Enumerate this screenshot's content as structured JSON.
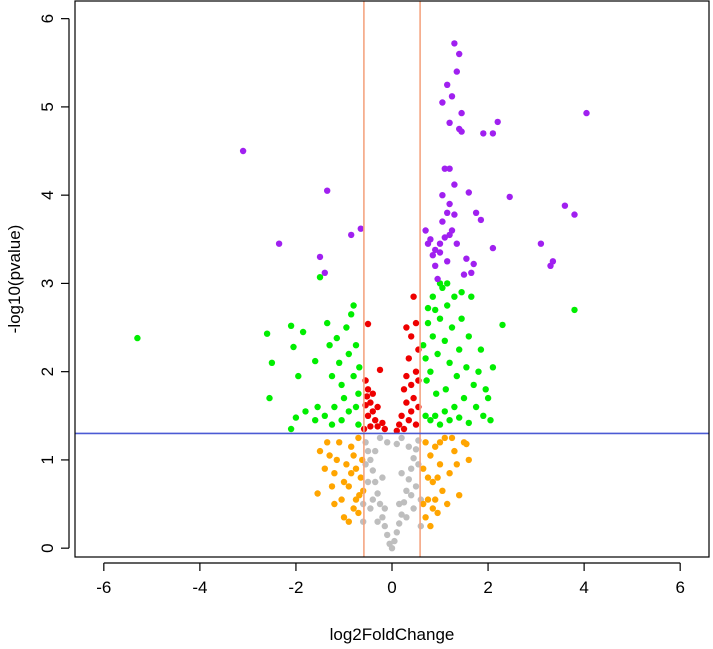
{
  "chart_data": {
    "type": "scatter",
    "title": "",
    "xlabel": "log2FoldChange",
    "ylabel": "-log10(pvalue)",
    "xlim": [
      -6.6,
      6.6
    ],
    "ylim": [
      -0.1,
      6.2
    ],
    "x_ticks": [
      -6,
      -4,
      -2,
      0,
      2,
      4,
      6
    ],
    "y_ticks": [
      0,
      1,
      2,
      3,
      4,
      5,
      6
    ],
    "thresholds": {
      "fold_change_lines": [
        -0.585,
        0.585
      ],
      "pvalue_line": 1.3,
      "fold_line_color": "#f4a582",
      "pvalue_line_color": "#4b5bd4"
    },
    "grid": false,
    "legend": "none",
    "series": [
      {
        "color": "#a020f0",
        "points": [
          [
            1.3,
            5.72
          ],
          [
            1.4,
            5.6
          ],
          [
            1.15,
            5.25
          ],
          [
            1.35,
            5.4
          ],
          [
            1.25,
            5.12
          ],
          [
            1.05,
            5.05
          ],
          [
            1.45,
            4.93
          ],
          [
            1.4,
            4.75
          ],
          [
            1.2,
            4.82
          ],
          [
            1.9,
            4.7
          ],
          [
            2.2,
            4.83
          ],
          [
            2.1,
            4.7
          ],
          [
            4.05,
            4.93
          ],
          [
            1.45,
            4.72
          ],
          [
            1.1,
            4.3
          ],
          [
            1.2,
            4.3
          ],
          [
            1.3,
            4.12
          ],
          [
            1.6,
            4.03
          ],
          [
            1.05,
            4.0
          ],
          [
            1.2,
            3.9
          ],
          [
            1.15,
            3.8
          ],
          [
            1.3,
            3.78
          ],
          [
            1.75,
            3.8
          ],
          [
            1.85,
            3.72
          ],
          [
            1.05,
            3.7
          ],
          [
            1.25,
            3.6
          ],
          [
            1.1,
            3.52
          ],
          [
            1.0,
            3.45
          ],
          [
            0.75,
            3.45
          ],
          [
            0.85,
            3.32
          ],
          [
            1.0,
            3.35
          ],
          [
            1.15,
            3.25
          ],
          [
            0.9,
            3.2
          ],
          [
            1.55,
            3.28
          ],
          [
            1.7,
            3.22
          ],
          [
            2.1,
            3.4
          ],
          [
            1.65,
            3.12
          ],
          [
            0.95,
            3.05
          ],
          [
            0.7,
            3.6
          ],
          [
            0.8,
            3.5
          ],
          [
            2.45,
            3.98
          ],
          [
            3.6,
            3.88
          ],
          [
            3.8,
            3.78
          ],
          [
            3.1,
            3.45
          ],
          [
            3.35,
            3.25
          ],
          [
            3.3,
            3.2
          ],
          [
            1.5,
            3.1
          ],
          [
            1.2,
            3.55
          ],
          [
            0.9,
            3.38
          ],
          [
            1.35,
            3.45
          ],
          [
            -3.1,
            4.5
          ],
          [
            -1.35,
            4.05
          ],
          [
            -2.35,
            3.45
          ],
          [
            -0.85,
            3.55
          ],
          [
            -1.5,
            3.3
          ],
          [
            -1.4,
            3.12
          ],
          [
            -0.65,
            3.62
          ]
        ]
      },
      {
        "color": "#00ee00",
        "points": [
          [
            -5.3,
            2.38
          ],
          [
            -2.6,
            2.43
          ],
          [
            -2.1,
            2.52
          ],
          [
            -2.5,
            2.1
          ],
          [
            -2.55,
            1.7
          ],
          [
            -2.05,
            2.28
          ],
          [
            -1.95,
            1.95
          ],
          [
            -1.85,
            2.45
          ],
          [
            -1.6,
            2.12
          ],
          [
            -1.55,
            1.6
          ],
          [
            -1.35,
            2.55
          ],
          [
            -1.3,
            2.3
          ],
          [
            -1.25,
            1.95
          ],
          [
            -1.15,
            2.38
          ],
          [
            -1.1,
            2.1
          ],
          [
            -1.05,
            1.85
          ],
          [
            -0.95,
            2.5
          ],
          [
            -0.9,
            2.2
          ],
          [
            -0.85,
            2.65
          ],
          [
            -0.8,
            1.95
          ],
          [
            -0.75,
            2.3
          ],
          [
            -0.7,
            1.75
          ],
          [
            -0.68,
            2.05
          ],
          [
            -1.0,
            1.7
          ],
          [
            -1.2,
            1.6
          ],
          [
            -1.4,
            1.5
          ],
          [
            -1.6,
            1.45
          ],
          [
            -1.8,
            1.55
          ],
          [
            -2.0,
            1.48
          ],
          [
            -2.1,
            1.35
          ],
          [
            -1.25,
            1.4
          ],
          [
            -1.05,
            1.45
          ],
          [
            -0.9,
            1.55
          ],
          [
            -0.75,
            1.6
          ],
          [
            -0.7,
            1.4
          ],
          [
            -1.5,
            3.07
          ],
          [
            -0.8,
            2.75
          ],
          [
            0.65,
            2.3
          ],
          [
            0.7,
            2.15
          ],
          [
            0.72,
            1.9
          ],
          [
            0.75,
            2.55
          ],
          [
            0.8,
            2.0
          ],
          [
            0.85,
            2.4
          ],
          [
            0.9,
            2.7
          ],
          [
            0.92,
            1.75
          ],
          [
            0.95,
            2.2
          ],
          [
            1.0,
            2.6
          ],
          [
            1.05,
            2.95
          ],
          [
            1.1,
            2.35
          ],
          [
            1.12,
            1.8
          ],
          [
            1.15,
            2.75
          ],
          [
            1.2,
            2.1
          ],
          [
            1.25,
            2.5
          ],
          [
            1.3,
            2.85
          ],
          [
            1.35,
            1.95
          ],
          [
            1.4,
            2.25
          ],
          [
            1.45,
            2.6
          ],
          [
            1.5,
            1.7
          ],
          [
            1.55,
            2.05
          ],
          [
            1.6,
            2.4
          ],
          [
            1.65,
            2.85
          ],
          [
            1.7,
            1.85
          ],
          [
            1.75,
            1.6
          ],
          [
            1.8,
            2.0
          ],
          [
            1.85,
            2.25
          ],
          [
            1.9,
            1.5
          ],
          [
            2.0,
            1.7
          ],
          [
            2.1,
            2.05
          ],
          [
            2.3,
            2.53
          ],
          [
            2.05,
            1.45
          ],
          [
            1.95,
            1.8
          ],
          [
            3.8,
            2.7
          ],
          [
            0.7,
            1.5
          ],
          [
            0.8,
            1.45
          ],
          [
            0.9,
            1.5
          ],
          [
            1.0,
            1.4
          ],
          [
            1.1,
            1.55
          ],
          [
            1.2,
            1.45
          ],
          [
            1.3,
            1.6
          ],
          [
            1.4,
            1.48
          ],
          [
            1.6,
            1.42
          ],
          [
            0.85,
            2.85
          ],
          [
            1.0,
            3.0
          ],
          [
            1.15,
            3.0
          ],
          [
            1.45,
            2.9
          ],
          [
            0.75,
            2.72
          ]
        ]
      },
      {
        "color": "#ee0000",
        "points": [
          [
            -0.5,
            2.54
          ],
          [
            -0.25,
            2.02
          ],
          [
            -0.55,
            1.9
          ],
          [
            -0.5,
            1.8
          ],
          [
            -0.45,
            1.65
          ],
          [
            -0.4,
            1.55
          ],
          [
            -0.35,
            1.45
          ],
          [
            -0.3,
            1.38
          ],
          [
            -0.2,
            1.42
          ],
          [
            -0.5,
            1.5
          ],
          [
            -0.55,
            1.62
          ],
          [
            -0.45,
            1.38
          ],
          [
            -0.4,
            1.75
          ],
          [
            -0.58,
            1.35
          ],
          [
            -0.15,
            1.35
          ],
          [
            -0.3,
            1.6
          ],
          [
            -0.52,
            1.72
          ],
          [
            0.3,
            2.5
          ],
          [
            0.5,
            2.55
          ],
          [
            0.45,
            2.85
          ],
          [
            0.4,
            2.4
          ],
          [
            0.35,
            2.15
          ],
          [
            0.5,
            2.0
          ],
          [
            0.3,
            1.95
          ],
          [
            0.25,
            1.8
          ],
          [
            0.4,
            1.85
          ],
          [
            0.45,
            1.7
          ],
          [
            0.55,
            1.6
          ],
          [
            0.2,
            1.5
          ],
          [
            0.3,
            1.65
          ],
          [
            0.15,
            1.4
          ],
          [
            0.35,
            1.45
          ],
          [
            0.5,
            1.4
          ],
          [
            0.55,
            1.9
          ],
          [
            0.25,
            1.35
          ],
          [
            0.4,
            1.55
          ],
          [
            0.55,
            2.25
          ],
          [
            0.1,
            1.33
          ]
        ]
      },
      {
        "color": "#ffa500",
        "points": [
          [
            -1.55,
            0.62
          ],
          [
            -1.3,
            1.05
          ],
          [
            -1.2,
            0.85
          ],
          [
            -1.1,
            1.2
          ],
          [
            -1.05,
            0.55
          ],
          [
            -0.95,
            0.95
          ],
          [
            -0.9,
            0.7
          ],
          [
            -0.85,
            1.15
          ],
          [
            -0.8,
            0.45
          ],
          [
            -0.75,
            0.9
          ],
          [
            -0.7,
            1.25
          ],
          [
            -0.68,
            0.6
          ],
          [
            -0.62,
            1.0
          ],
          [
            -1.0,
            0.35
          ],
          [
            -1.4,
            0.9
          ],
          [
            -1.25,
            0.7
          ],
          [
            -0.9,
            0.3
          ],
          [
            -0.75,
            0.55
          ],
          [
            -1.15,
            1.0
          ],
          [
            -0.65,
            0.8
          ],
          [
            -1.35,
            1.2
          ],
          [
            -1.5,
            1.1
          ],
          [
            -0.8,
            1.05
          ],
          [
            -1.0,
            0.75
          ],
          [
            -0.7,
            0.4
          ],
          [
            -1.2,
            0.5
          ],
          [
            -0.85,
            0.85
          ],
          [
            -0.6,
            0.65
          ],
          [
            0.65,
            0.9
          ],
          [
            0.7,
            1.2
          ],
          [
            0.75,
            0.55
          ],
          [
            0.8,
            1.05
          ],
          [
            0.85,
            0.75
          ],
          [
            0.9,
            1.15
          ],
          [
            0.95,
            0.4
          ],
          [
            1.0,
            0.95
          ],
          [
            1.05,
            0.65
          ],
          [
            1.1,
            1.25
          ],
          [
            1.2,
            0.85
          ],
          [
            1.3,
            1.1
          ],
          [
            1.4,
            0.6
          ],
          [
            1.5,
            1.2
          ],
          [
            1.6,
            1.0
          ],
          [
            1.55,
            1.18
          ],
          [
            0.7,
            0.35
          ],
          [
            0.8,
            0.25
          ],
          [
            0.9,
            0.55
          ],
          [
            1.0,
            1.2
          ],
          [
            1.15,
            0.5
          ],
          [
            0.75,
            0.8
          ],
          [
            0.65,
            0.5
          ],
          [
            1.25,
            1.25
          ],
          [
            0.95,
            0.8
          ],
          [
            0.85,
            0.45
          ],
          [
            1.35,
            0.95
          ]
        ]
      },
      {
        "color": "#bebebe",
        "points": [
          [
            0.0,
            0.0
          ],
          [
            -0.05,
            0.05
          ],
          [
            0.05,
            0.08
          ],
          [
            -0.1,
            0.15
          ],
          [
            0.1,
            0.18
          ],
          [
            -0.15,
            0.25
          ],
          [
            0.15,
            0.28
          ],
          [
            -0.2,
            0.35
          ],
          [
            0.2,
            0.38
          ],
          [
            -0.25,
            0.5
          ],
          [
            0.25,
            0.52
          ],
          [
            -0.3,
            0.62
          ],
          [
            0.3,
            0.65
          ],
          [
            -0.35,
            0.75
          ],
          [
            0.35,
            0.78
          ],
          [
            -0.4,
            0.88
          ],
          [
            0.4,
            0.9
          ],
          [
            -0.45,
            1.0
          ],
          [
            0.45,
            1.02
          ],
          [
            -0.5,
            1.1
          ],
          [
            0.5,
            1.12
          ],
          [
            -0.55,
            1.2
          ],
          [
            0.55,
            1.22
          ],
          [
            -0.25,
            1.25
          ],
          [
            0.2,
            1.25
          ],
          [
            -0.4,
            0.55
          ],
          [
            0.4,
            0.6
          ],
          [
            -0.5,
            0.75
          ],
          [
            0.5,
            0.7
          ],
          [
            -0.55,
            0.95
          ],
          [
            0.55,
            0.95
          ],
          [
            -0.3,
            0.3
          ],
          [
            0.3,
            0.35
          ],
          [
            -0.45,
            0.45
          ],
          [
            0.45,
            0.45
          ],
          [
            -0.6,
            0.5
          ],
          [
            0.6,
            0.55
          ],
          [
            -0.15,
            0.45
          ],
          [
            0.15,
            0.5
          ],
          [
            -0.35,
            1.1
          ],
          [
            0.35,
            1.15
          ],
          [
            -0.1,
            1.2
          ],
          [
            0.1,
            1.18
          ],
          [
            -0.2,
            0.8
          ],
          [
            0.2,
            0.85
          ],
          [
            0.6,
            0.25
          ],
          [
            -0.6,
            0.3
          ]
        ]
      }
    ]
  }
}
